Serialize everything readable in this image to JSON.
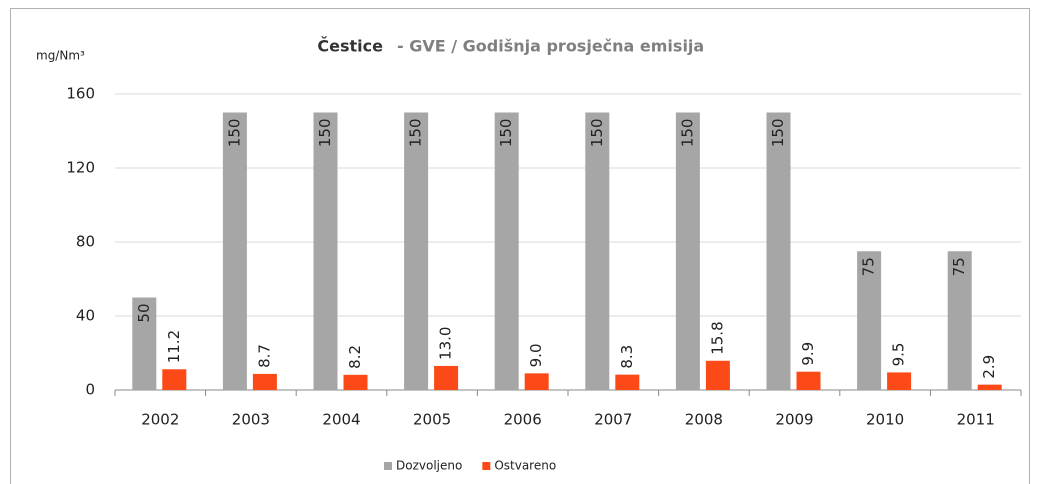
{
  "chart_data": {
    "type": "bar",
    "title": "Čestice",
    "subtitle": "- GVE / Godišnja prosječna emisija",
    "y_label": "mg/Nm³",
    "categories": [
      "2002",
      "2003",
      "2004",
      "2005",
      "2006",
      "2007",
      "2008",
      "2009",
      "2010",
      "2011"
    ],
    "series": [
      {
        "name": "Dozvoljeno",
        "color": "#a6a6a6",
        "values": [
          50,
          150,
          150,
          150,
          150,
          150,
          150,
          150,
          75,
          75
        ]
      },
      {
        "name": "Ostvareno",
        "color": "#fb4a17",
        "values": [
          11.2,
          8.7,
          8.2,
          13.0,
          9.0,
          8.3,
          15.8,
          9.9,
          9.5,
          2.9
        ],
        "value_labels": [
          "11.2",
          "8.7",
          "8.2",
          "13.0",
          "9.0",
          "8.3",
          "15.8",
          "9.9",
          "9.5",
          "2.9"
        ]
      }
    ],
    "ylim": [
      0,
      160
    ],
    "yticks": [
      0,
      40,
      80,
      120,
      160
    ],
    "grid": true,
    "legend": "bottom"
  }
}
